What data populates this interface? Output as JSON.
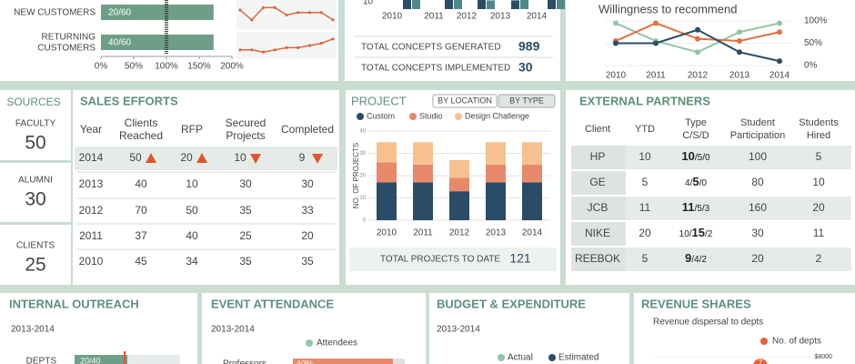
{
  "customers": {
    "type": "bar",
    "color": "#6e9e87",
    "rows": [
      {
        "label": [
          "NEW CUSTOMERS"
        ],
        "ratio": "20/60",
        "value": 172
      },
      {
        "label": [
          "RETURNING",
          "CUSTOMERS"
        ],
        "ratio": "40/60",
        "value": 172
      }
    ],
    "xlim": [
      0,
      200
    ],
    "xticks": [
      {
        "value": 0,
        "label": "0%"
      },
      {
        "value": 50,
        "label": "50%"
      },
      {
        "value": 100,
        "label": "100%"
      },
      {
        "value": 150,
        "label": "150%"
      },
      {
        "value": 200,
        "label": "200%"
      }
    ],
    "reference": 100,
    "sparklines": {
      "type": "line",
      "color": "#e0653f",
      "ylim": [
        0,
        10
      ],
      "series": [
        [
          7,
          3,
          8,
          8,
          5,
          6,
          6,
          6,
          3
        ],
        [
          3,
          3,
          2,
          3,
          4,
          4,
          5,
          6,
          8
        ]
      ]
    }
  },
  "concepts": {
    "type": "bar",
    "categories": [
      "2010",
      "2011",
      "2012",
      "2013",
      "2014"
    ],
    "ylim": [
      0,
      10
    ],
    "yticks": [
      10
    ],
    "series": [
      {
        "color": "#2b4c66",
        "values": [
          14,
          13,
          15,
          12,
          14
        ]
      },
      {
        "color": "#4f8a8b",
        "values": [
          13,
          14,
          12,
          15,
          13
        ]
      }
    ],
    "totals": [
      {
        "label": "TOTAL CONCEPTS GENERATED",
        "value": 989
      },
      {
        "label": "TOTAL CONCEPTS IMPLEMENTED",
        "value": 30
      }
    ]
  },
  "recommend": {
    "type": "line",
    "title": "Willingness to recommend",
    "categories": [
      "2010",
      "2011",
      "2012",
      "2013",
      "2014"
    ],
    "ylim": [
      0,
      100
    ],
    "yticks": [
      {
        "value": 0,
        "label": "0%"
      },
      {
        "value": 50,
        "label": "50%"
      },
      {
        "value": 100,
        "label": "100%"
      }
    ],
    "series": [
      {
        "color": "#8fc7a5",
        "values": [
          95,
          55,
          30,
          75,
          95
        ]
      },
      {
        "color": "#e2703f",
        "values": [
          55,
          95,
          60,
          55,
          75
        ]
      },
      {
        "color": "#2b4c66",
        "values": [
          50,
          50,
          80,
          30,
          10
        ]
      }
    ]
  },
  "sources": {
    "title": "SOURCES",
    "items": [
      {
        "label": "FACULTY",
        "value": 50
      },
      {
        "label": "ALUMNI",
        "value": 30
      },
      {
        "label": "CLIENTS",
        "value": 25
      }
    ]
  },
  "sales": {
    "title": "SALES EFFORTS",
    "columns": [
      [
        "Year"
      ],
      [
        "Clients",
        "Reached"
      ],
      [
        "RFP"
      ],
      [
        "Secured",
        "Projects"
      ],
      [
        "Completed"
      ]
    ],
    "rows": [
      [
        2014,
        50,
        20,
        10,
        9
      ],
      [
        2013,
        40,
        10,
        30,
        30
      ],
      [
        2012,
        70,
        50,
        35,
        33
      ],
      [
        2011,
        37,
        40,
        25,
        20
      ],
      [
        2010,
        45,
        34,
        35,
        35
      ]
    ],
    "trend": [
      "up",
      "up",
      "down",
      "down"
    ],
    "trend_color": "#e2552f"
  },
  "project": {
    "type": "bar",
    "stacked": true,
    "title": "PROJECT",
    "tabs": [
      "BY LOCATION",
      "BY TYPE"
    ],
    "active_tab": 0,
    "categories": [
      "2010",
      "2011",
      "2012",
      "2013",
      "2014"
    ],
    "ylabel": "NO. OF PROJECTS",
    "ylim": [
      0,
      40
    ],
    "yticks": [
      0,
      10,
      20,
      30,
      40
    ],
    "grid": true,
    "series": [
      {
        "name": "Custom",
        "color": "#2b4c66",
        "values": [
          17,
          17,
          13,
          17,
          17
        ]
      },
      {
        "name": "Studio",
        "color": "#e8896b",
        "values": [
          9,
          8,
          6,
          8,
          8
        ]
      },
      {
        "name": "Design Challenge",
        "color": "#f6c18e",
        "values": [
          9,
          10,
          8,
          10,
          10
        ]
      }
    ],
    "total": {
      "label": "TOTAL PROJECTS TO DATE",
      "value": 121
    }
  },
  "partners": {
    "title": "EXTERNAL PARTNERS",
    "columns": [
      [
        "Client"
      ],
      [
        "YTD"
      ],
      [
        "Type",
        "C/S/D"
      ],
      [
        "Student",
        "Participation"
      ],
      [
        "Students",
        "Hired"
      ]
    ],
    "rows": [
      {
        "client": "HP",
        "ytd": 10,
        "type": [
          "10",
          "/5/0"
        ],
        "bold": 0,
        "participation": 100,
        "hired": 5
      },
      {
        "client": "GE",
        "ytd": 5,
        "type": [
          "4/",
          "5",
          "/0"
        ],
        "bold": 1,
        "participation": 80,
        "hired": 10
      },
      {
        "client": "JCB",
        "ytd": 11,
        "type": [
          "11",
          "/5/3"
        ],
        "bold": 0,
        "participation": 160,
        "hired": 20
      },
      {
        "client": "NIKE",
        "ytd": 20,
        "type": [
          "10/",
          "15",
          "/2"
        ],
        "bold": 1,
        "participation": 30,
        "hired": 11
      },
      {
        "client": "REEBOK",
        "ytd": 5,
        "type": [
          "9",
          "/4/2"
        ],
        "bold": 0,
        "participation": 20,
        "hired": 2
      }
    ]
  },
  "outreach": {
    "title": "INTERNAL OUTREACH",
    "period": "2013-2014",
    "color": "#6e9e87",
    "bar": {
      "label": "DEPTS",
      "value": 20,
      "total": 40,
      "value_label": "20/40"
    }
  },
  "events": {
    "title": "EVENT ATTENDANCE",
    "period": "2013-2014",
    "legend": "Attendees",
    "legend_color": "#8fc7a5",
    "color": "#e8896b",
    "xlim": [
      0,
      100
    ],
    "rows": [
      {
        "label": "Professors",
        "value": 40,
        "value_label": "40%"
      }
    ]
  },
  "budget": {
    "title": "BUDGET &  EXPENDITURE",
    "period": "2013-2014",
    "legend": [
      {
        "name": "Actual",
        "color": "#8fc7a5"
      },
      {
        "name": "Estimated",
        "color": "#2b4c66"
      }
    ]
  },
  "revenue": {
    "title": "REVENUE SHARES",
    "subtitle": "Revenue dispersal to depts",
    "legend": {
      "name": "No. of depts",
      "color": "#e2603a"
    },
    "ytick": {
      "value": 8000,
      "label": "$8000"
    },
    "points": [
      7
    ]
  }
}
